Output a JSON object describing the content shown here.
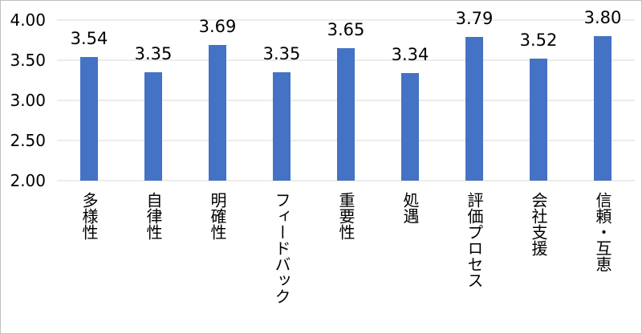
{
  "chart_data": {
    "type": "bar",
    "categories": [
      "多様性",
      "自律性",
      "明確性",
      "フィードバック",
      "重要性",
      "処遇",
      "評価プロセス",
      "会社支援",
      "信頼・互恵"
    ],
    "values": [
      3.54,
      3.35,
      3.69,
      3.35,
      3.65,
      3.34,
      3.79,
      3.52,
      3.8
    ],
    "data_labels": [
      "3.54",
      "3.35",
      "3.69",
      "3.35",
      "3.65",
      "3.34",
      "3.79",
      "3.52",
      "3.80"
    ],
    "ylim": [
      2.0,
      4.0
    ],
    "yticks": [
      "2.00",
      "2.50",
      "3.00",
      "3.50",
      "4.00"
    ],
    "gridlines": true,
    "bar_color": "#4472C4",
    "gridline_color": "#D9D9D9",
    "title": "",
    "xlabel": "",
    "ylabel": ""
  }
}
